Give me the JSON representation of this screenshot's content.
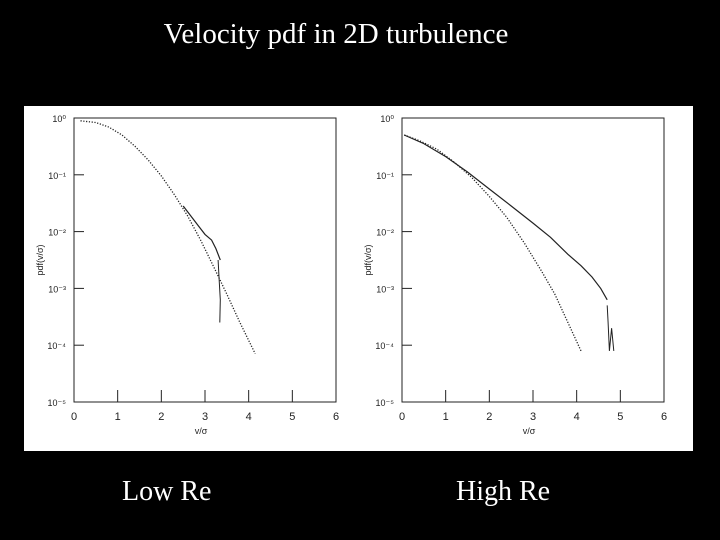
{
  "slide": {
    "title": "Velocity pdf in 2D turbulence",
    "captions": [
      "Low Re",
      "High Re"
    ]
  },
  "colors": {
    "background": "#000000",
    "plot_background": "#ffffff",
    "ink": "#222222",
    "text": "#ffffff"
  },
  "chart_data": [
    {
      "type": "line",
      "title": "",
      "xlabel": "v/σ",
      "ylabel": "pdf(v/σ)",
      "xlim": [
        0,
        6
      ],
      "ylim": [
        -5,
        0
      ],
      "y_scale": "log",
      "x_ticks": [
        "0",
        "1",
        "2",
        "3",
        "4",
        "5",
        "6"
      ],
      "y_ticks": [
        "10⁰",
        "10⁻¹",
        "10⁻²",
        "10⁻³",
        "10⁻⁴",
        "10⁻⁵"
      ],
      "y_tick_values": [
        0,
        -1,
        -2,
        -3,
        -4,
        -5
      ],
      "grid": false,
      "series": [
        {
          "style": "dotted",
          "x": [
            0.15,
            0.5,
            0.8,
            1.1,
            1.4,
            1.7,
            2.0,
            2.3,
            2.6,
            2.9,
            3.2,
            3.5,
            3.8,
            4.15
          ],
          "log10_y": [
            -0.05,
            -0.08,
            -0.16,
            -0.3,
            -0.5,
            -0.74,
            -1.02,
            -1.35,
            -1.72,
            -2.15,
            -2.62,
            -3.1,
            -3.6,
            -4.15
          ]
        },
        {
          "style": "solid-noisy",
          "x": [
            2.5,
            2.7,
            2.85,
            3.0,
            3.15,
            3.25,
            3.35
          ],
          "log10_y": [
            -1.55,
            -1.75,
            -1.9,
            -2.05,
            -2.15,
            -2.3,
            -2.5
          ]
        },
        {
          "style": "spike",
          "x": [
            3.3,
            3.32,
            3.35,
            3.34
          ],
          "log10_y": [
            -2.5,
            -2.8,
            -3.2,
            -3.6
          ]
        }
      ]
    },
    {
      "type": "line",
      "title": "",
      "xlabel": "v/σ",
      "ylabel": "pdf(v/σ)",
      "xlim": [
        0,
        6
      ],
      "ylim": [
        -5,
        0
      ],
      "y_scale": "log",
      "x_ticks": [
        "0",
        "1",
        "2",
        "3",
        "4",
        "5",
        "6"
      ],
      "y_ticks": [
        "10⁰",
        "10⁻¹",
        "10⁻²",
        "10⁻³",
        "10⁻⁴",
        "10⁻⁵"
      ],
      "y_tick_values": [
        0,
        -1,
        -2,
        -3,
        -4,
        -5
      ],
      "grid": false,
      "series": [
        {
          "style": "dotted",
          "x": [
            0.05,
            0.4,
            0.8,
            1.2,
            1.6,
            2.0,
            2.4,
            2.8,
            3.2,
            3.5,
            3.8,
            4.1
          ],
          "log10_y": [
            -0.3,
            -0.4,
            -0.55,
            -0.78,
            -1.05,
            -1.38,
            -1.75,
            -2.2,
            -2.7,
            -3.1,
            -3.6,
            -4.1
          ]
        },
        {
          "style": "solid-noisy",
          "x": [
            0.05,
            0.5,
            1.0,
            1.5,
            2.0,
            2.5,
            3.0,
            3.4,
            3.8,
            4.1,
            4.35,
            4.55,
            4.7
          ],
          "log10_y": [
            -0.3,
            -0.45,
            -0.68,
            -0.95,
            -1.25,
            -1.55,
            -1.85,
            -2.1,
            -2.4,
            -2.6,
            -2.8,
            -3.0,
            -3.2
          ]
        },
        {
          "style": "spike",
          "x": [
            4.7,
            4.72,
            4.75,
            4.8,
            4.85
          ],
          "log10_y": [
            -3.3,
            -3.6,
            -4.1,
            -3.7,
            -4.1
          ]
        }
      ]
    }
  ]
}
